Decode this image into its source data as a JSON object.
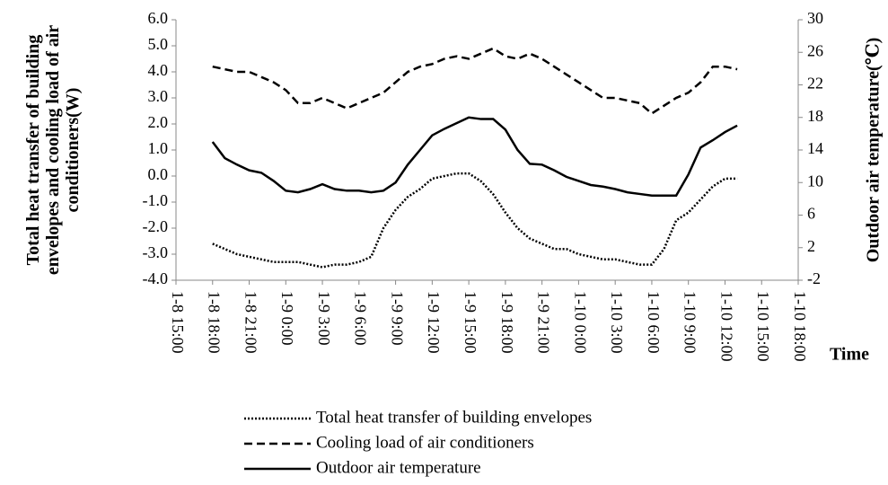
{
  "chart_data": {
    "type": "line",
    "ylabel": [
      "Total heat transfer of building",
      "envelopes and cooling load of air",
      "conditioners(W)"
    ],
    "y2label": "Outdoor air temperature(℃)",
    "xlabel": "Time",
    "categories": [
      "1-8 15:00",
      null,
      null,
      "1-8 18:00",
      null,
      null,
      "1-8 21:00",
      null,
      null,
      "1-9 0:00",
      null,
      null,
      "1-9 3:00",
      null,
      null,
      "1-9 6:00",
      null,
      null,
      "1-9 9:00",
      null,
      null,
      "1-9 12:00",
      null,
      null,
      "1-9 15:00",
      null,
      null,
      "1-9 18:00",
      null,
      null,
      "1-9 21:00",
      null,
      null,
      "1-10 0:00",
      null,
      null,
      "1-10 3:00",
      null,
      null,
      "1-10 6:00",
      null,
      null,
      "1-10 9:00",
      null,
      null,
      "1-10 12:00",
      null,
      null,
      "1-10 15:00",
      null,
      null,
      "1-10 18:00"
    ],
    "ylim": [
      -4,
      6
    ],
    "yticks": [
      {
        "value": -4,
        "label": "-4.0"
      },
      {
        "value": -3,
        "label": "-3.0"
      },
      {
        "value": -2,
        "label": "-2.0"
      },
      {
        "value": -1,
        "label": "-1.0"
      },
      {
        "value": 0,
        "label": "0.0"
      },
      {
        "value": 1,
        "label": "1.0"
      },
      {
        "value": 2,
        "label": "2.0"
      },
      {
        "value": 3,
        "label": "3.0"
      },
      {
        "value": 4,
        "label": "4.0"
      },
      {
        "value": 5,
        "label": "5.0"
      },
      {
        "value": 6,
        "label": "6.0"
      }
    ],
    "y2lim": [
      -2,
      30
    ],
    "y2ticks": [
      -2,
      2,
      6,
      10,
      14,
      18,
      22,
      26,
      30
    ],
    "grid": false,
    "legend": "bottom",
    "series": [
      {
        "name": "Total heat transfer of building envelopes",
        "color": "#000000",
        "dash": "dotted",
        "values": [
          null,
          null,
          null,
          -2.6,
          -2.8,
          -3.0,
          -3.1,
          -3.2,
          -3.3,
          -3.3,
          -3.3,
          -3.4,
          -3.5,
          -3.4,
          -3.4,
          -3.3,
          -3.1,
          -2.0,
          -1.3,
          -0.8,
          -0.5,
          -0.1,
          0.0,
          0.1,
          0.1,
          -0.2,
          -0.7,
          -1.4,
          -2.0,
          -2.4,
          -2.6,
          -2.8,
          -2.8,
          -3.0,
          -3.1,
          -3.2,
          -3.2,
          -3.3,
          -3.4,
          -3.4,
          -2.8,
          -1.7,
          -1.4,
          -0.9,
          -0.4,
          -0.1,
          -0.1,
          null,
          null,
          null,
          null,
          null
        ]
      },
      {
        "name": "Cooling load of air conditioners",
        "color": "#000000",
        "dash": "dashed",
        "values": [
          null,
          null,
          null,
          4.2,
          4.1,
          4.0,
          4.0,
          3.8,
          3.6,
          3.3,
          2.8,
          2.8,
          3.0,
          2.8,
          2.6,
          2.8,
          3.0,
          3.2,
          3.6,
          4.0,
          4.2,
          4.3,
          4.5,
          4.6,
          4.5,
          4.7,
          4.9,
          4.6,
          4.5,
          4.7,
          4.5,
          4.2,
          3.9,
          3.6,
          3.3,
          3.0,
          3.0,
          2.9,
          2.8,
          2.4,
          2.7,
          3.0,
          3.2,
          3.6,
          4.2,
          4.2,
          4.1,
          null,
          null,
          null,
          null,
          null
        ]
      },
      {
        "name": "Outdoor air temperature",
        "color": "#000000",
        "dash": "solid",
        "axis": "y2",
        "values": [
          null,
          null,
          null,
          15,
          13,
          12.2,
          11.5,
          11.2,
          10.2,
          9,
          8.8,
          9.2,
          9.8,
          9.2,
          9,
          9,
          8.8,
          9,
          10,
          12.2,
          14,
          15.8,
          16.6,
          17.3,
          18,
          17.8,
          17.8,
          16.5,
          14,
          12.3,
          12.2,
          11.5,
          10.7,
          10.2,
          9.7,
          9.5,
          9.2,
          8.8,
          8.6,
          8.4,
          8.4,
          8.4,
          11,
          14.3,
          15.2,
          16.2,
          17,
          null,
          null,
          null,
          null,
          null
        ]
      }
    ]
  }
}
